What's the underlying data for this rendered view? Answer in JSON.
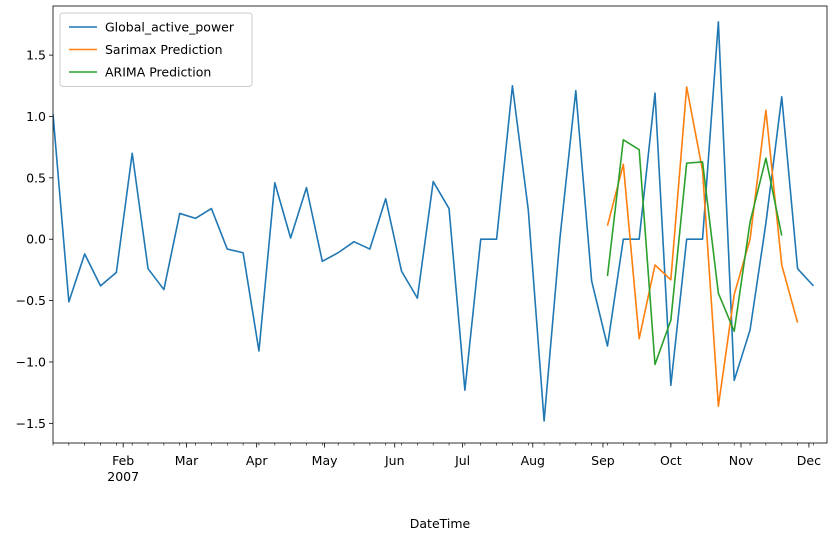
{
  "chart_data": {
    "type": "line",
    "title": "",
    "xlabel": "DateTime",
    "ylabel": "",
    "xlim": [
      "2007-01-01",
      "2007-12-09"
    ],
    "ylim": [
      -1.66,
      1.9
    ],
    "y_ticks": [
      -1.5,
      -1.0,
      -0.5,
      0.0,
      0.5,
      1.0,
      1.5
    ],
    "y_tick_labels": [
      "−1.5",
      "−1.0",
      "−0.5",
      "0.0",
      "0.5",
      "1.0",
      "1.5"
    ],
    "x_ticks": [
      {
        "date": "2007-02-01",
        "label": "Feb",
        "sublabel": "2007"
      },
      {
        "date": "2007-03-01",
        "label": "Mar"
      },
      {
        "date": "2007-04-01",
        "label": "Apr"
      },
      {
        "date": "2007-05-01",
        "label": "May"
      },
      {
        "date": "2007-06-01",
        "label": "Jun"
      },
      {
        "date": "2007-07-01",
        "label": "Jul"
      },
      {
        "date": "2007-08-01",
        "label": "Aug"
      },
      {
        "date": "2007-09-01",
        "label": "Sep"
      },
      {
        "date": "2007-10-01",
        "label": "Oct"
      },
      {
        "date": "2007-11-01",
        "label": "Nov"
      },
      {
        "date": "2007-12-01",
        "label": "Dec"
      }
    ],
    "legend_position": "top-left",
    "grid": false,
    "series": [
      {
        "name": "Global_active_power",
        "color": "#1f77b4",
        "points": [
          [
            "2007-01-01",
            1.02
          ],
          [
            "2007-01-08",
            -0.51
          ],
          [
            "2007-01-15",
            -0.12
          ],
          [
            "2007-01-22",
            -0.38
          ],
          [
            "2007-01-29",
            -0.27
          ],
          [
            "2007-02-05",
            0.7
          ],
          [
            "2007-02-12",
            -0.24
          ],
          [
            "2007-02-19",
            -0.41
          ],
          [
            "2007-02-26",
            0.21
          ],
          [
            "2007-03-05",
            0.17
          ],
          [
            "2007-03-12",
            0.25
          ],
          [
            "2007-03-19",
            -0.08
          ],
          [
            "2007-03-26",
            -0.11
          ],
          [
            "2007-04-02",
            -0.91
          ],
          [
            "2007-04-09",
            0.46
          ],
          [
            "2007-04-16",
            0.01
          ],
          [
            "2007-04-23",
            0.42
          ],
          [
            "2007-04-30",
            -0.18
          ],
          [
            "2007-05-07",
            -0.11
          ],
          [
            "2007-05-14",
            -0.02
          ],
          [
            "2007-05-21",
            -0.08
          ],
          [
            "2007-05-28",
            0.33
          ],
          [
            "2007-06-04",
            -0.26
          ],
          [
            "2007-06-11",
            -0.48
          ],
          [
            "2007-06-18",
            0.47
          ],
          [
            "2007-06-25",
            0.25
          ],
          [
            "2007-07-02",
            -1.23
          ],
          [
            "2007-07-09",
            0.0
          ],
          [
            "2007-07-16",
            0.0
          ],
          [
            "2007-07-23",
            1.25
          ],
          [
            "2007-07-30",
            0.24
          ],
          [
            "2007-08-06",
            -1.48
          ],
          [
            "2007-08-13",
            0.01
          ],
          [
            "2007-08-20",
            1.21
          ],
          [
            "2007-08-27",
            -0.34
          ],
          [
            "2007-09-03",
            -0.87
          ],
          [
            "2007-09-10",
            0.0
          ],
          [
            "2007-09-17",
            0.0
          ],
          [
            "2007-09-24",
            1.19
          ],
          [
            "2007-10-01",
            -1.19
          ],
          [
            "2007-10-08",
            0.0
          ],
          [
            "2007-10-15",
            0.0
          ],
          [
            "2007-10-22",
            1.77
          ],
          [
            "2007-10-29",
            -1.15
          ],
          [
            "2007-11-05",
            -0.74
          ],
          [
            "2007-11-12",
            0.13
          ],
          [
            "2007-11-19",
            1.16
          ],
          [
            "2007-11-26",
            -0.24
          ],
          [
            "2007-12-03",
            -0.38
          ]
        ]
      },
      {
        "name": "Sarimax Prediction",
        "color": "#ff7f0e",
        "points": [
          [
            "2007-09-03",
            0.11
          ],
          [
            "2007-09-10",
            0.61
          ],
          [
            "2007-09-17",
            -0.81
          ],
          [
            "2007-09-24",
            -0.21
          ],
          [
            "2007-10-01",
            -0.33
          ],
          [
            "2007-10-08",
            1.24
          ],
          [
            "2007-10-15",
            0.56
          ],
          [
            "2007-10-22",
            -1.36
          ],
          [
            "2007-10-29",
            -0.45
          ],
          [
            "2007-11-05",
            0.0
          ],
          [
            "2007-11-12",
            1.05
          ],
          [
            "2007-11-19",
            -0.21
          ],
          [
            "2007-11-26",
            -0.68
          ]
        ]
      },
      {
        "name": "ARIMA Prediction",
        "color": "#2ca02c",
        "points": [
          [
            "2007-09-03",
            -0.3
          ],
          [
            "2007-09-10",
            0.81
          ],
          [
            "2007-09-17",
            0.73
          ],
          [
            "2007-09-24",
            -1.02
          ],
          [
            "2007-10-01",
            -0.66
          ],
          [
            "2007-10-08",
            0.62
          ],
          [
            "2007-10-15",
            0.63
          ],
          [
            "2007-10-22",
            -0.44
          ],
          [
            "2007-10-29",
            -0.75
          ],
          [
            "2007-11-05",
            0.14
          ],
          [
            "2007-11-12",
            0.66
          ],
          [
            "2007-11-19",
            0.03
          ]
        ]
      }
    ]
  }
}
